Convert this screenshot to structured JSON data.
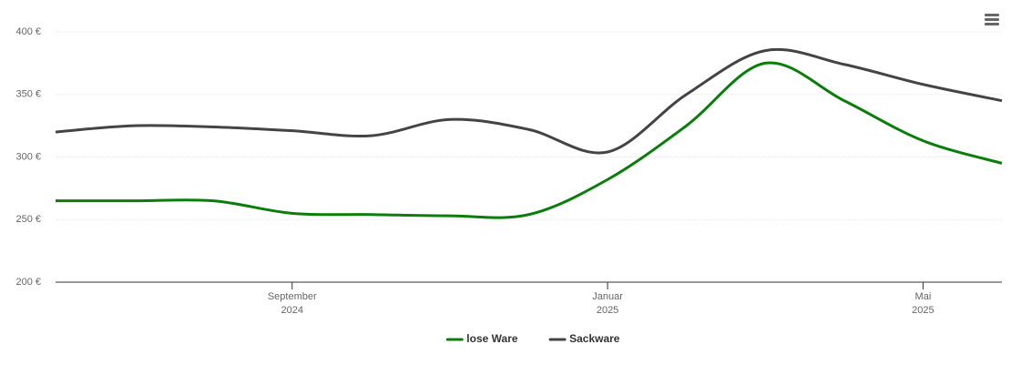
{
  "chart_data": {
    "type": "line",
    "x": [
      "2024-06",
      "2024-07",
      "2024-08",
      "2024-09",
      "2024-10",
      "2024-11",
      "2024-12",
      "2025-01",
      "2025-02",
      "2025-03",
      "2025-04",
      "2025-05",
      "2025-06"
    ],
    "series": [
      {
        "name": "lose Ware",
        "color": "#0a7d0a",
        "values": [
          265,
          265,
          265,
          255,
          254,
          253,
          254,
          282,
          325,
          375,
          345,
          313,
          295
        ]
      },
      {
        "name": "Sackware",
        "color": "#444444",
        "values": [
          320,
          325,
          324,
          321,
          317,
          330,
          322,
          304,
          350,
          385,
          374,
          358,
          345
        ]
      }
    ],
    "xlim": [
      "2024-06",
      "2025-06"
    ],
    "xticks": [
      {
        "value": "2024-09",
        "label": [
          "September",
          "2024"
        ]
      },
      {
        "value": "2025-01",
        "label": [
          "Januar",
          "2025"
        ]
      },
      {
        "value": "2025-05",
        "label": [
          "Mai",
          "2025"
        ]
      }
    ],
    "ylim": [
      200,
      400
    ],
    "yticks": [
      {
        "value": 200,
        "label": "200 €"
      },
      {
        "value": 250,
        "label": "250 €"
      },
      {
        "value": 300,
        "label": "300 €"
      },
      {
        "value": 350,
        "label": "350 €"
      },
      {
        "value": 400,
        "label": "400 €"
      }
    ],
    "grid": true,
    "legend": "bottom"
  }
}
